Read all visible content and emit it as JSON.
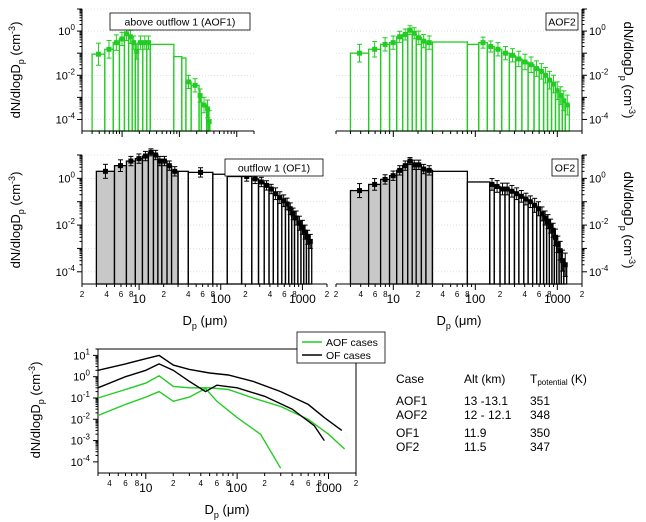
{
  "colors": {
    "aof": "#22cc22",
    "of": "#000000",
    "fill_gray": "#c8c8c8"
  },
  "axis_texts": {
    "y_label": "dN/dlogD",
    "y_label_sub": "p",
    "y_units_open": " (cm",
    "y_units_exp": "-3",
    "y_units_close": ")",
    "x_label": "D",
    "x_label_sub": "p",
    "x_units": " (μm)"
  },
  "chart_data": [
    {
      "type": "bar",
      "title": "above outflow 1 (AOF1)",
      "series_color": "green",
      "xscale": "log",
      "yscale": "log",
      "xlim": [
        2,
        2000
      ],
      "ylim": [
        3e-05,
        10
      ],
      "bin_edges": [
        3,
        5,
        7,
        9,
        11,
        13,
        15,
        17,
        19,
        23,
        27,
        31,
        80,
        110,
        130,
        160,
        220,
        240,
        300,
        320,
        340,
        360
      ],
      "values": [
        0.09,
        0.15,
        0.3,
        0.44,
        0.75,
        0.55,
        0.3,
        0.12,
        0.3,
        0.3,
        0.3,
        0.25,
        0.07,
        0.06,
        0.005,
        0.0035,
        0.0012,
        0.00045,
        0.0003,
        8e-05,
        3e-05
      ],
      "errors": [
        0.5,
        0.4,
        0.35,
        0.3,
        0.3,
        0.3,
        0.3,
        0.35,
        0.3,
        0.3,
        0.3,
        0,
        0,
        0,
        0.3,
        0.3,
        0.3,
        0.35,
        0.4,
        0.5,
        0
      ]
    },
    {
      "type": "bar",
      "title": "AOF2",
      "series_color": "green",
      "xscale": "log",
      "yscale": "log",
      "xlim": [
        2,
        2000
      ],
      "ylim": [
        3e-05,
        10
      ],
      "bin_edges": [
        3,
        5,
        7,
        9,
        11,
        13,
        15,
        17,
        19,
        22,
        25,
        30,
        80,
        110,
        140,
        170,
        210,
        260,
        310,
        370,
        440,
        520,
        600,
        680,
        760,
        850,
        950,
        1050,
        1150,
        1250,
        1400
      ],
      "values": [
        0.1,
        0.15,
        0.25,
        0.3,
        0.55,
        0.7,
        1.1,
        0.8,
        0.5,
        0.35,
        0.3,
        0.32,
        0.25,
        0.3,
        0.2,
        0.15,
        0.1,
        0.08,
        0.055,
        0.04,
        0.03,
        0.02,
        0.015,
        0.01,
        0.006,
        0.004,
        0.002,
        0.0012,
        0.0007,
        0.00045
      ],
      "errors": [
        0.4,
        0.35,
        0.3,
        0.3,
        0.25,
        0.25,
        0.2,
        0.25,
        0.3,
        0.3,
        0.3,
        0,
        0,
        0.25,
        0.25,
        0.3,
        0.3,
        0.3,
        0.35,
        0.35,
        0.35,
        0.35,
        0.35,
        0.35,
        0.4,
        0.4,
        0.4,
        0.4,
        0.45,
        0.45
      ]
    },
    {
      "type": "bar",
      "title": "outflow 1 (OF1)",
      "series_color": "black",
      "xscale": "log",
      "yscale": "log",
      "xlim": [
        2,
        2000
      ],
      "ylim": [
        3e-05,
        10
      ],
      "bin_edges": [
        3,
        5,
        7,
        9,
        11,
        13,
        15,
        17,
        19,
        22,
        25,
        30,
        40,
        80,
        120,
        180,
        240,
        290,
        340,
        390,
        440,
        500,
        560,
        620,
        680,
        740,
        800,
        880,
        960,
        1040,
        1120,
        1200,
        1300
      ],
      "shaded_bins": 11,
      "values": [
        2.0,
        3.5,
        5.5,
        7.0,
        9.0,
        13,
        10,
        5.5,
        5.5,
        3.5,
        2.0,
        2.0,
        1.8,
        1.5,
        1.2,
        1.2,
        0.95,
        0.7,
        0.5,
        0.35,
        0.22,
        0.15,
        0.11,
        0.08,
        0.05,
        0.03,
        0.02,
        0.012,
        0.008,
        0.005,
        0.003,
        0.002
      ],
      "errors": [
        0.3,
        0.25,
        0.2,
        0.2,
        0.2,
        0.15,
        0.2,
        0.2,
        0.2,
        0.2,
        0.2,
        0,
        0.2,
        0,
        0,
        0.2,
        0.2,
        0.2,
        0.2,
        0.2,
        0.25,
        0.25,
        0.25,
        0.25,
        0.25,
        0.25,
        0.3,
        0.3,
        0.3,
        0.3,
        0.3,
        0.3
      ]
    },
    {
      "type": "bar",
      "title": "OF2",
      "series_color": "black",
      "xscale": "log",
      "yscale": "log",
      "xlim": [
        2,
        2000
      ],
      "ylim": [
        3e-05,
        10
      ],
      "bin_edges": [
        3,
        5,
        7,
        9,
        11,
        13,
        15,
        17,
        19,
        22,
        25,
        30,
        80,
        150,
        170,
        200,
        230,
        260,
        300,
        340,
        390,
        440,
        500,
        560,
        620,
        680,
        740,
        800,
        860,
        920,
        980,
        1050,
        1120,
        1200,
        1300
      ],
      "shaded_bins": 11,
      "values": [
        0.3,
        0.55,
        0.9,
        1.3,
        2.2,
        3.5,
        5.5,
        3.8,
        3.8,
        2.5,
        2.2,
        2.0,
        0.7,
        0.55,
        0.45,
        0.35,
        0.35,
        0.28,
        0.22,
        0.17,
        0.13,
        0.1,
        0.07,
        0.05,
        0.03,
        0.02,
        0.014,
        0.009,
        0.006,
        0.003,
        0.0015,
        0.0008,
        0.0003,
        0.0002
      ],
      "errors": [
        0.3,
        0.25,
        0.2,
        0.2,
        0.2,
        0.2,
        0.15,
        0.2,
        0.2,
        0.2,
        0.2,
        0,
        0,
        0.25,
        0.25,
        0.25,
        0.25,
        0.25,
        0.25,
        0.25,
        0.25,
        0.25,
        0.3,
        0.3,
        0.3,
        0.3,
        0.3,
        0.3,
        0.3,
        0.35,
        0.35,
        0.4,
        0.45,
        0.5
      ]
    },
    {
      "type": "line",
      "xscale": "log",
      "yscale": "log",
      "xlim": [
        3,
        2000
      ],
      "ylim": [
        3e-05,
        20
      ],
      "legend_placement": "top-right",
      "series": [
        {
          "name": "AOF cases",
          "color": "green",
          "x": [
            3,
            6,
            10,
            14,
            20,
            30,
            50,
            80,
            150,
            300,
            600,
            1000,
            1500
          ],
          "y": [
            0.1,
            0.25,
            0.5,
            1.1,
            0.35,
            0.3,
            0.3,
            0.25,
            0.1,
            0.04,
            0.01,
            0.002,
            0.0004
          ]
        },
        {
          "name": "",
          "color": "green",
          "x": [
            3,
            6,
            10,
            14,
            20,
            30,
            45,
            60,
            100,
            180,
            300
          ],
          "y": [
            0.015,
            0.05,
            0.11,
            0.2,
            0.07,
            0.11,
            0.28,
            0.07,
            0.012,
            0.002,
            5e-05
          ]
        },
        {
          "name": "OF cases",
          "color": "black",
          "x": [
            3,
            6,
            10,
            14,
            20,
            30,
            50,
            80,
            150,
            300,
            600,
            900,
            1400
          ],
          "y": [
            2,
            4,
            7,
            10,
            3.5,
            2.2,
            1.5,
            1.2,
            0.6,
            0.2,
            0.05,
            0.012,
            0.003
          ]
        },
        {
          "name": "",
          "color": "black",
          "x": [
            3,
            6,
            10,
            14,
            20,
            30,
            45,
            60,
            100,
            200,
            400,
            700,
            900
          ],
          "y": [
            0.3,
            1,
            2,
            4,
            2,
            0.6,
            0.2,
            0.4,
            0.3,
            0.12,
            0.03,
            0.005,
            0.001
          ]
        }
      ]
    }
  ],
  "cases_table": {
    "header": {
      "case": "Case",
      "alt": "Alt (km)",
      "temp_main": "T",
      "temp_sub": "potential",
      "temp_unit": " (K)"
    },
    "rows": [
      {
        "case": "AOF1",
        "alt": "13 -13.1",
        "temp": "351"
      },
      {
        "case": "AOF2",
        "alt": "12 - 12.1",
        "temp": "348"
      },
      {
        "case": "OF1",
        "alt": "11.9",
        "temp": "350"
      },
      {
        "case": "OF2",
        "alt": "11.5",
        "temp": "347"
      }
    ]
  }
}
